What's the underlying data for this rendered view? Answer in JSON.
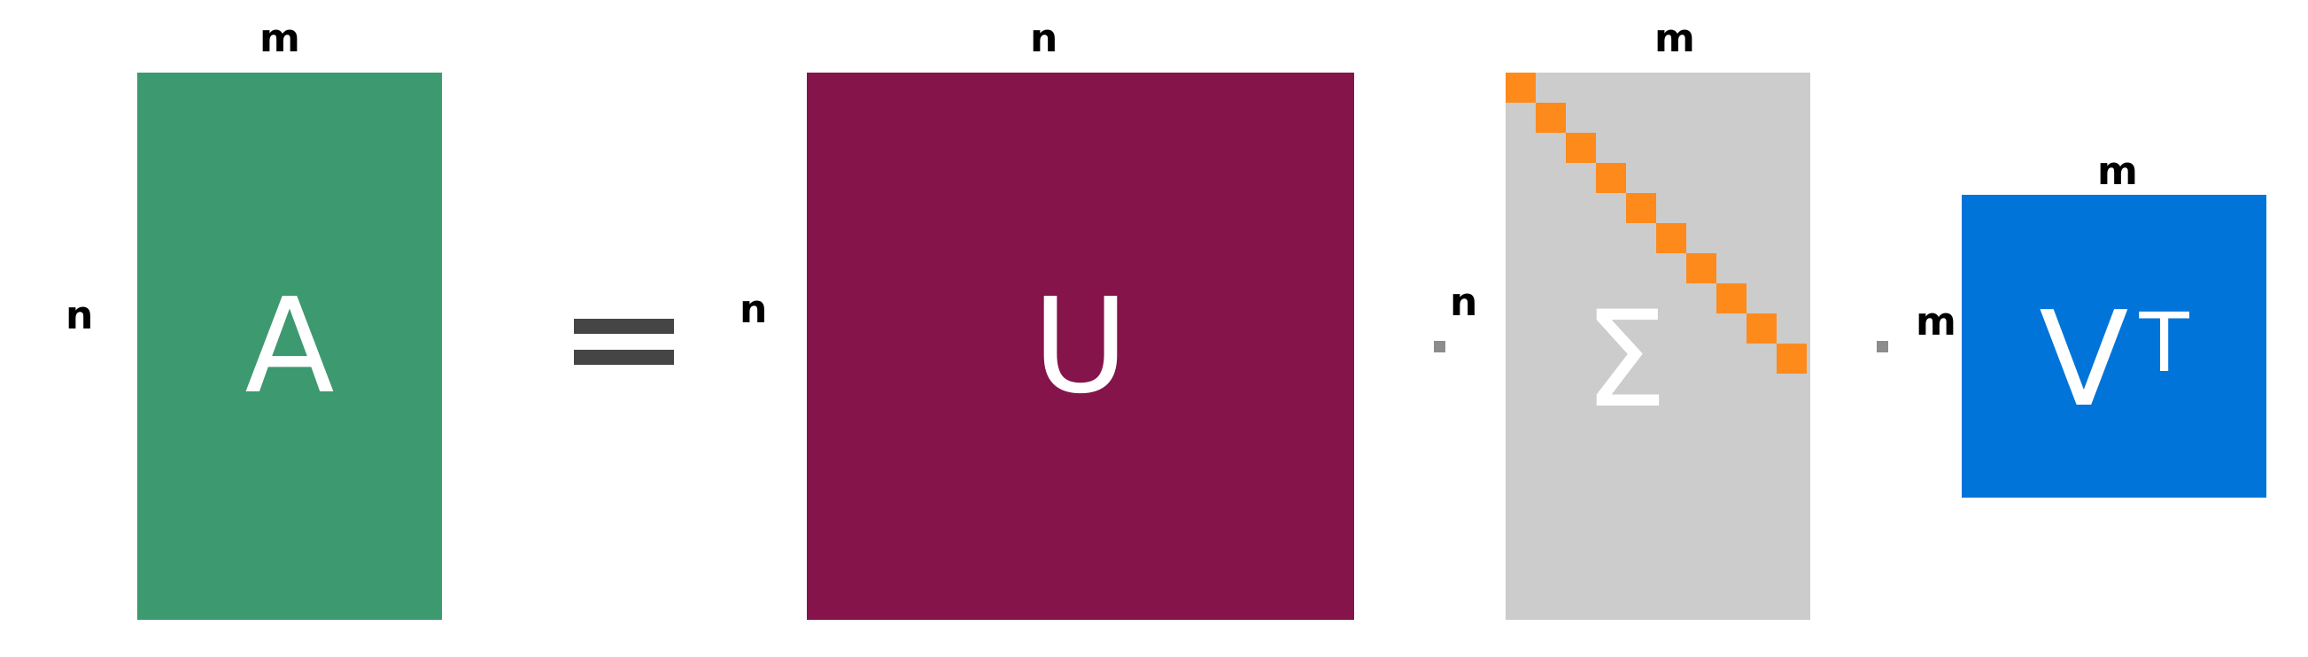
{
  "colors": {
    "a": "#3d9970",
    "u": "#85144b",
    "sigma": "#cccccc",
    "diagonal": "#ff8a1c",
    "vt": "#0074d9",
    "operator": "#454545"
  },
  "matrix_a": {
    "symbol": "A",
    "top_label": "m",
    "side_label": "n"
  },
  "matrix_u": {
    "symbol": "U",
    "top_label": "n",
    "side_label": "n"
  },
  "matrix_sigma": {
    "symbol": "Σ",
    "top_label": "m",
    "side_label": "n",
    "diagonal_cells": 10
  },
  "matrix_vt": {
    "symbol": "V",
    "superscript": "T",
    "top_label": "m",
    "side_label": "m"
  },
  "operators": {
    "equals": "=",
    "product": "·"
  }
}
